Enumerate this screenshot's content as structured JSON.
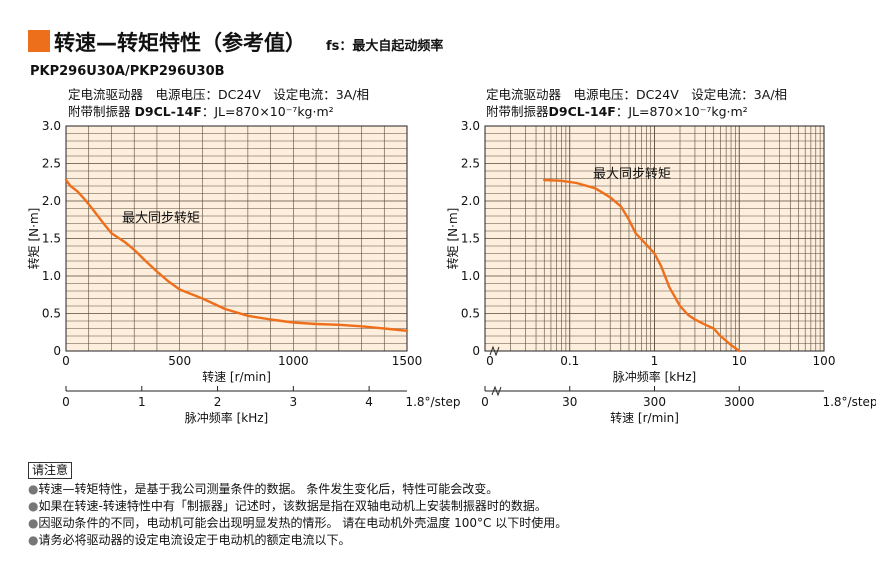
{
  "header": {
    "title": "转速—转矩特性（参考值）",
    "subtitle": "fs：最大自起动频率",
    "model": "PKP296U30A/PKP296U30B"
  },
  "conditions": {
    "line1": "定电流驱动器　电源电压：DC24V　设定电流：3A/相",
    "line2_prefix": "附带制振器",
    "line2_bold": "D9CL-14F",
    "line2_suffix": "：JL=870×10⁻⁷kg·m²"
  },
  "chart_data": [
    {
      "type": "line",
      "x": [
        0,
        20,
        50,
        80,
        120,
        160,
        200,
        260,
        300,
        350,
        400,
        450,
        500,
        600,
        700,
        800,
        900,
        1000,
        1100,
        1200,
        1300,
        1400,
        1500
      ],
      "series": [
        {
          "name": "最大同步转矩",
          "values": [
            2.28,
            2.2,
            2.13,
            2.03,
            1.88,
            1.72,
            1.57,
            1.45,
            1.35,
            1.2,
            1.06,
            0.93,
            0.82,
            0.7,
            0.56,
            0.47,
            0.42,
            0.38,
            0.36,
            0.35,
            0.33,
            0.3,
            0.27
          ]
        }
      ],
      "xlabel": "转速 [r/min]",
      "ylabel": "转矩 [N·m]",
      "xlim": [
        0,
        1500
      ],
      "ylim": [
        0,
        3.0
      ],
      "xticks": [
        "0",
        "500",
        "1000",
        "1500"
      ],
      "yticks": [
        "0",
        "0.5",
        "1.0",
        "1.5",
        "2.0",
        "2.5",
        "3.0"
      ],
      "x2label": "脉冲频率 [kHz]",
      "x2ticks": [
        "0",
        "1",
        "2",
        "3",
        "4"
      ],
      "x2unit": "1.8°/step",
      "annotation": "最大同步转矩",
      "grid": true,
      "x_scale": "linear"
    },
    {
      "type": "line",
      "x": [
        0.05,
        0.08,
        0.12,
        0.2,
        0.3,
        0.4,
        0.5,
        0.6,
        0.8,
        1.0,
        1.2,
        1.5,
        2.0,
        2.5,
        3.0,
        4.0,
        5.0,
        6.0,
        8.0,
        10.0
      ],
      "series": [
        {
          "name": "最大同步转矩",
          "values": [
            2.28,
            2.27,
            2.24,
            2.17,
            2.05,
            1.93,
            1.75,
            1.57,
            1.42,
            1.3,
            1.13,
            0.85,
            0.6,
            0.48,
            0.42,
            0.35,
            0.3,
            0.2,
            0.08,
            0.0
          ]
        }
      ],
      "xlabel": "脉冲频率 [kHz]",
      "ylabel": "转矩 [N·m]",
      "xlim": [
        0.01,
        100
      ],
      "ylim": [
        0,
        3.0
      ],
      "xticks": [
        "0.1",
        "1",
        "10",
        "100"
      ],
      "yticks": [
        "0",
        "0.5",
        "1.0",
        "1.5",
        "2.0",
        "2.5",
        "3.0"
      ],
      "x2label": "转速 [r/min]",
      "x2ticks": [
        "0",
        "30",
        "300",
        "3000"
      ],
      "x2unit": "1.8°/step",
      "annotation": "最大同步转矩",
      "grid": true,
      "x_scale": "log"
    }
  ],
  "notes": {
    "title": "请注意",
    "items": [
      "转速—转矩特性，是基于我公司测量条件的数据。 条件发生变化后，特性可能会改变。",
      "如果在转速-转速特性中有「制振器」记述时，该数据是指在双轴电动机上安装制振器时的数据。",
      "因驱动条件的不同，电动机可能会出现明显发热的情形。 请在电动机外壳温度 100°C 以下时使用。",
      "请务必将驱动器的设定电流设定于电动机的额定电流以下。"
    ]
  },
  "colors": {
    "accent": "#ee6f1b",
    "plot_bg": "#fdeedd",
    "curve": "#ee6f1b"
  }
}
